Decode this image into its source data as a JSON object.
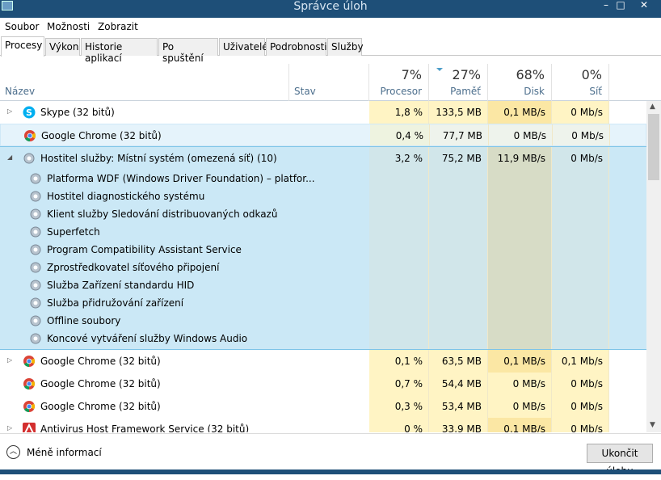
{
  "window": {
    "title": "Správce úloh",
    "minimize": "–",
    "maximize": "□",
    "close": "✕"
  },
  "menu": [
    "Soubor",
    "Možnosti",
    "Zobrazit"
  ],
  "tabs": [
    "Procesy",
    "Výkon",
    "Historie aplikací",
    "Po spuštění",
    "Uživatelé",
    "Podrobnosti",
    "Služby"
  ],
  "active_tab": "Procesy",
  "columns": {
    "name": "Název",
    "status": "Stav",
    "cpu": {
      "pct": "7%",
      "label": "Procesor"
    },
    "mem": {
      "pct": "27%",
      "label": "Paměť"
    },
    "disk": {
      "pct": "68%",
      "label": "Disk"
    },
    "net": {
      "pct": "0%",
      "label": "Síť"
    }
  },
  "processes": [
    {
      "name": "Skype (32 bitů)",
      "icon": "skype-icon",
      "expander": "▷",
      "cpu": "1,8 %",
      "mem": "133,5 MB",
      "disk": "0,1 MB/s",
      "net": "0 Mb/s"
    },
    {
      "name": "Google Chrome (32 bitů)",
      "icon": "chrome-icon",
      "expander": "",
      "cpu": "0,4 %",
      "mem": "77,7 MB",
      "disk": "0 MB/s",
      "net": "0 Mb/s"
    },
    {
      "name": "Hostitel služby: Místní systém (omezená síť) (10)",
      "icon": "gear-icon",
      "expander": "◢",
      "cpu": "3,2 %",
      "mem": "75,2 MB",
      "disk": "11,9 MB/s",
      "net": "0 Mb/s",
      "services": [
        "Platforma WDF (Windows Driver Foundation) – platfor...",
        "Hostitel diagnostického systému",
        "Klient služby Sledování distribuovaných odkazů",
        "Superfetch",
        "Program Compatibility Assistant Service",
        "Zprostředkovatel síťového připojení",
        "Služba Zařízení standardu HID",
        "Služba přidružování zařízení",
        "Offline soubory",
        "Koncové vytváření služby Windows Audio"
      ]
    },
    {
      "name": "Google Chrome (32 bitů)",
      "icon": "chrome-icon",
      "expander": "▷",
      "cpu": "0,1 %",
      "mem": "63,5 MB",
      "disk": "0,1 MB/s",
      "net": "0,1 Mb/s"
    },
    {
      "name": "Google Chrome (32 bitů)",
      "icon": "chrome-icon",
      "expander": "",
      "cpu": "0,7 %",
      "mem": "54,4 MB",
      "disk": "0 MB/s",
      "net": "0 Mb/s"
    },
    {
      "name": "Google Chrome (32 bitů)",
      "icon": "chrome-icon",
      "expander": "",
      "cpu": "0,3 %",
      "mem": "53,4 MB",
      "disk": "0 MB/s",
      "net": "0 Mb/s"
    },
    {
      "name": "Antivirus Host Framework Service (32 bitů)",
      "icon": "antivirus-icon",
      "expander": "▷",
      "cpu": "0 %",
      "mem": "33,9 MB",
      "disk": "0,1 MB/s",
      "net": "0 Mb/s"
    }
  ],
  "footer": {
    "less_info": "Méně informací",
    "end_task": "Ukončit úlohu"
  },
  "colors": {
    "titlebar": "#1e4f78",
    "selection": "#cbe8f6",
    "hover": "#e5f3fb",
    "cpu_heat": "#fff4c4",
    "disk_heat": "#fbe7a4"
  }
}
